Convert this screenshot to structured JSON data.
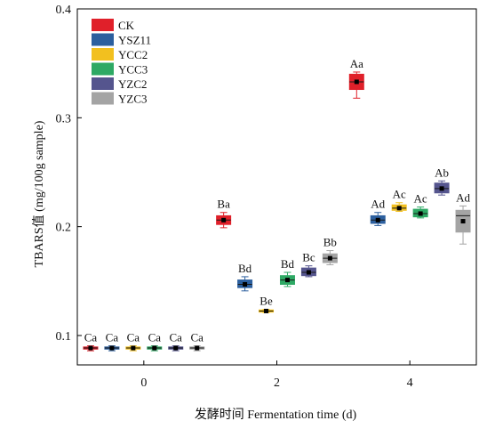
{
  "chart_data": {
    "type": "box",
    "xlabel": "发酵时间 Fermentation time (d)",
    "ylabel": "TBARS值 (mg/100g sample)",
    "xticks": [
      0,
      2,
      4
    ],
    "yticks": [
      0.1,
      0.2,
      0.3,
      0.4
    ],
    "xlim": [
      -1,
      5
    ],
    "ylim": [
      0.073,
      0.4
    ],
    "legend_position": "top-left",
    "series": [
      {
        "name": "CK",
        "color": "#e0202a",
        "boxes": [
          {
            "x": 0,
            "min": 0.086,
            "q1": 0.0875,
            "median": 0.0885,
            "mean": 0.0885,
            "q3": 0.0895,
            "max": 0.0905,
            "label": "Ca"
          },
          {
            "x": 2,
            "min": 0.199,
            "q1": 0.202,
            "median": 0.206,
            "mean": 0.206,
            "q3": 0.21,
            "max": 0.213,
            "label": "Ba"
          },
          {
            "x": 4,
            "min": 0.318,
            "q1": 0.326,
            "median": 0.333,
            "mean": 0.333,
            "q3": 0.34,
            "max": 0.342,
            "label": "Aa"
          }
        ]
      },
      {
        "name": "YSZ11",
        "color": "#2c5f9e",
        "boxes": [
          {
            "x": 0,
            "min": 0.086,
            "q1": 0.0875,
            "median": 0.0885,
            "mean": 0.0885,
            "q3": 0.0895,
            "max": 0.0905,
            "label": "Ca"
          },
          {
            "x": 2,
            "min": 0.141,
            "q1": 0.144,
            "median": 0.147,
            "mean": 0.147,
            "q3": 0.151,
            "max": 0.154,
            "label": "Bd"
          },
          {
            "x": 4,
            "min": 0.201,
            "q1": 0.203,
            "median": 0.206,
            "mean": 0.206,
            "q3": 0.21,
            "max": 0.213,
            "label": "Ad"
          }
        ]
      },
      {
        "name": "YCC2",
        "color": "#f2c01f",
        "boxes": [
          {
            "x": 0,
            "min": 0.086,
            "q1": 0.0875,
            "median": 0.0885,
            "mean": 0.0885,
            "q3": 0.0895,
            "max": 0.0905,
            "label": "Ca"
          },
          {
            "x": 2,
            "min": 0.121,
            "q1": 0.1215,
            "median": 0.1225,
            "mean": 0.1225,
            "q3": 0.1235,
            "max": 0.124,
            "label": "Be"
          },
          {
            "x": 4,
            "min": 0.214,
            "q1": 0.215,
            "median": 0.217,
            "mean": 0.217,
            "q3": 0.22,
            "max": 0.222,
            "label": "Ac"
          }
        ]
      },
      {
        "name": "YCC3",
        "color": "#2ea964",
        "boxes": [
          {
            "x": 0,
            "min": 0.086,
            "q1": 0.0875,
            "median": 0.0885,
            "mean": 0.0885,
            "q3": 0.0895,
            "max": 0.0905,
            "label": "Ca"
          },
          {
            "x": 2,
            "min": 0.145,
            "q1": 0.147,
            "median": 0.151,
            "mean": 0.151,
            "q3": 0.155,
            "max": 0.158,
            "label": "Bd"
          },
          {
            "x": 4,
            "min": 0.208,
            "q1": 0.209,
            "median": 0.212,
            "mean": 0.212,
            "q3": 0.216,
            "max": 0.218,
            "label": "Ac"
          }
        ]
      },
      {
        "name": "YZC2",
        "color": "#55558e",
        "boxes": [
          {
            "x": 0,
            "min": 0.086,
            "q1": 0.0875,
            "median": 0.0885,
            "mean": 0.0885,
            "q3": 0.0895,
            "max": 0.0905,
            "label": "Ca"
          },
          {
            "x": 2,
            "min": 0.154,
            "q1": 0.155,
            "median": 0.158,
            "mean": 0.158,
            "q3": 0.162,
            "max": 0.164,
            "label": "Bc"
          },
          {
            "x": 4,
            "min": 0.229,
            "q1": 0.231,
            "median": 0.235,
            "mean": 0.235,
            "q3": 0.24,
            "max": 0.242,
            "label": "Ab"
          }
        ]
      },
      {
        "name": "YZC3",
        "color": "#a4a4a4",
        "boxes": [
          {
            "x": 0,
            "min": 0.086,
            "q1": 0.0875,
            "median": 0.0885,
            "mean": 0.0885,
            "q3": 0.0895,
            "max": 0.0905,
            "label": "Ca"
          },
          {
            "x": 2,
            "min": 0.165,
            "q1": 0.167,
            "median": 0.171,
            "mean": 0.171,
            "q3": 0.175,
            "max": 0.178,
            "label": "Bb"
          },
          {
            "x": 4,
            "min": 0.184,
            "q1": 0.195,
            "median": 0.21,
            "mean": 0.205,
            "q3": 0.215,
            "max": 0.219,
            "label": "Ad"
          }
        ]
      }
    ]
  }
}
